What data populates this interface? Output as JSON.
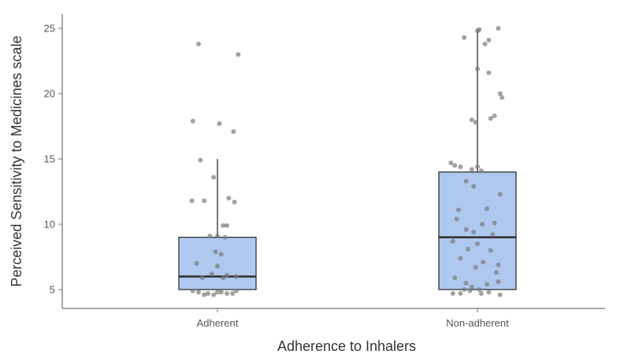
{
  "chart_data": {
    "type": "boxplot",
    "title": "",
    "xlabel": "Adherence to Inhalers",
    "ylabel": "Perceived Sensitivity to Medicines scale",
    "categories": [
      "Adherent",
      "Non-adherent"
    ],
    "ylim": [
      4.5,
      26
    ],
    "yticks": [
      5,
      10,
      15,
      20,
      25
    ],
    "grid": false,
    "box_color": "#aec8f0",
    "box_edge_color": "#333333",
    "whisker_color": "#777777",
    "point_color": "#7a7a7a",
    "boxes": [
      {
        "category": "Adherent",
        "whisker_low": 5,
        "q1": 5,
        "median": 6,
        "q3": 9,
        "whisker_high": 15,
        "points": [
          [
            -0.2,
            23.8
          ],
          [
            0.22,
            23.0
          ],
          [
            -0.26,
            17.9
          ],
          [
            0.02,
            17.7
          ],
          [
            0.17,
            17.1
          ],
          [
            -0.18,
            14.9
          ],
          [
            -0.04,
            13.6
          ],
          [
            0.12,
            12.0
          ],
          [
            0.18,
            11.7
          ],
          [
            -0.27,
            11.8
          ],
          [
            -0.14,
            11.8
          ],
          [
            0.06,
            9.9
          ],
          [
            0.1,
            9.9
          ],
          [
            -0.08,
            9.1
          ],
          [
            0.0,
            9.1
          ],
          [
            0.08,
            9.0
          ],
          [
            -0.02,
            7.9
          ],
          [
            0.04,
            7.7
          ],
          [
            -0.22,
            7.0
          ],
          [
            0.0,
            6.8
          ],
          [
            0.2,
            6.0
          ],
          [
            -0.06,
            6.2
          ],
          [
            0.1,
            6.1
          ],
          [
            -0.16,
            5.9
          ],
          [
            0.06,
            5.9
          ],
          [
            -0.2,
            4.8
          ],
          [
            -0.1,
            4.7
          ],
          [
            0.0,
            4.8
          ],
          [
            0.1,
            4.7
          ],
          [
            0.16,
            4.7
          ],
          [
            -0.26,
            4.9
          ],
          [
            -0.04,
            4.6
          ],
          [
            0.04,
            4.8
          ],
          [
            0.2,
            4.9
          ],
          [
            -0.14,
            4.6
          ]
        ]
      },
      {
        "category": "Non-adherent",
        "whisker_low": 5,
        "q1": 5,
        "median": 9,
        "q3": 14,
        "whisker_high": 25,
        "points": [
          [
            -0.14,
            24.3
          ],
          [
            0.0,
            24.8
          ],
          [
            0.02,
            24.9
          ],
          [
            0.22,
            25.0
          ],
          [
            0.08,
            23.8
          ],
          [
            0.12,
            24.1
          ],
          [
            0.0,
            21.9
          ],
          [
            0.12,
            21.6
          ],
          [
            0.24,
            20.0
          ],
          [
            0.26,
            19.7
          ],
          [
            -0.06,
            18.0
          ],
          [
            -0.02,
            17.8
          ],
          [
            0.14,
            18.1
          ],
          [
            0.18,
            18.3
          ],
          [
            -0.28,
            14.7
          ],
          [
            -0.24,
            14.5
          ],
          [
            -0.18,
            14.4
          ],
          [
            -0.06,
            14.2
          ],
          [
            0.0,
            14.4
          ],
          [
            0.04,
            14.1
          ],
          [
            -0.12,
            13.3
          ],
          [
            0.24,
            12.3
          ],
          [
            -0.04,
            12.9
          ],
          [
            -0.2,
            11.1
          ],
          [
            0.1,
            11.2
          ],
          [
            -0.22,
            10.4
          ],
          [
            0.05,
            10.0
          ],
          [
            0.18,
            10.1
          ],
          [
            -0.12,
            9.6
          ],
          [
            -0.04,
            9.4
          ],
          [
            0.16,
            9.2
          ],
          [
            -0.26,
            8.7
          ],
          [
            0.0,
            8.5
          ],
          [
            -0.1,
            8.1
          ],
          [
            0.14,
            8.0
          ],
          [
            -0.18,
            7.4
          ],
          [
            0.06,
            7.1
          ],
          [
            0.22,
            6.9
          ],
          [
            -0.02,
            6.7
          ],
          [
            0.2,
            6.3
          ],
          [
            -0.24,
            5.9
          ],
          [
            -0.12,
            5.5
          ],
          [
            0.1,
            5.4
          ],
          [
            -0.06,
            5.2
          ],
          [
            0.22,
            5.6
          ],
          [
            -0.26,
            4.7
          ],
          [
            -0.18,
            4.7
          ],
          [
            -0.08,
            4.9
          ],
          [
            0.02,
            5.0
          ],
          [
            0.12,
            4.8
          ],
          [
            0.24,
            4.6
          ],
          [
            -0.14,
            5.0
          ],
          [
            0.04,
            4.7
          ]
        ]
      }
    ]
  }
}
